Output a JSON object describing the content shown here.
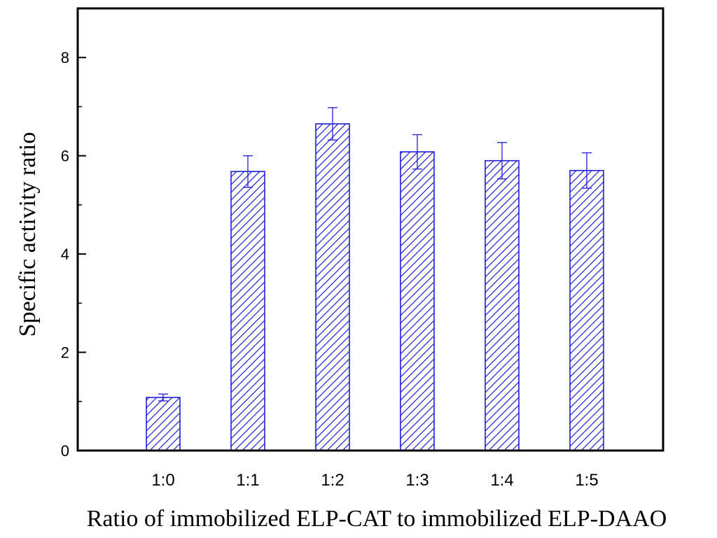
{
  "chart_data": {
    "type": "bar",
    "categories": [
      "1:0",
      "1:1",
      "1:2",
      "1:3",
      "1:4",
      "1:5"
    ],
    "values": [
      1.08,
      5.68,
      6.65,
      6.08,
      5.9,
      5.7
    ],
    "errors": [
      0.07,
      0.32,
      0.33,
      0.35,
      0.37,
      0.36
    ],
    "xlabel": "Ratio of immobilized ELP-CAT to immobilized ELP-DAAO",
    "ylabel": "Specific activity ratio",
    "ylim": [
      0,
      9
    ],
    "yticks": [
      0,
      2,
      4,
      6,
      8
    ],
    "grid": false,
    "bar_color": "#1f1fd6",
    "bar_fill": "white with diagonal hatch"
  }
}
